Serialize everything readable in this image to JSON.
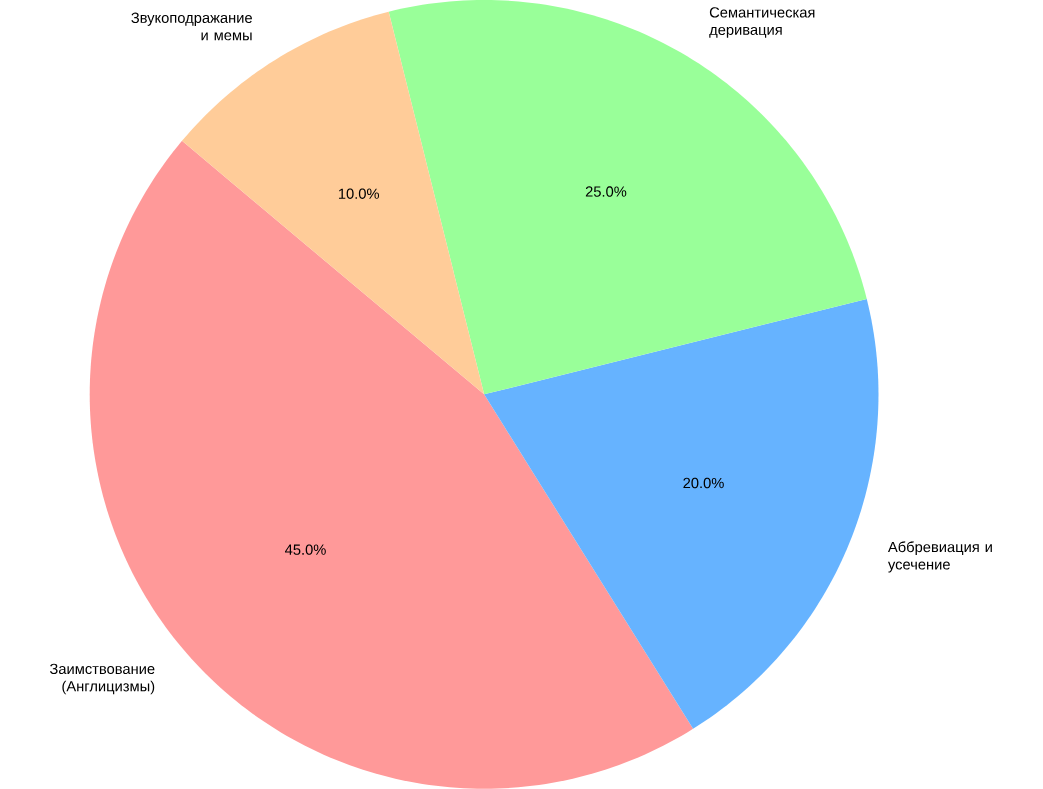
{
  "chart_data": {
    "type": "pie",
    "categories": [
      "Заимствование (Англицизмы)",
      "Аббревиация и усечение",
      "Семантическая деривация",
      "Звукоподражание и мемы"
    ],
    "values": [
      45,
      20,
      25,
      10
    ],
    "value_labels": [
      "45.0%",
      "20.0%",
      "25.0%",
      "10.0%"
    ],
    "colors": [
      "#ff9999",
      "#66b3ff",
      "#99ff99",
      "#ffcc99"
    ]
  }
}
